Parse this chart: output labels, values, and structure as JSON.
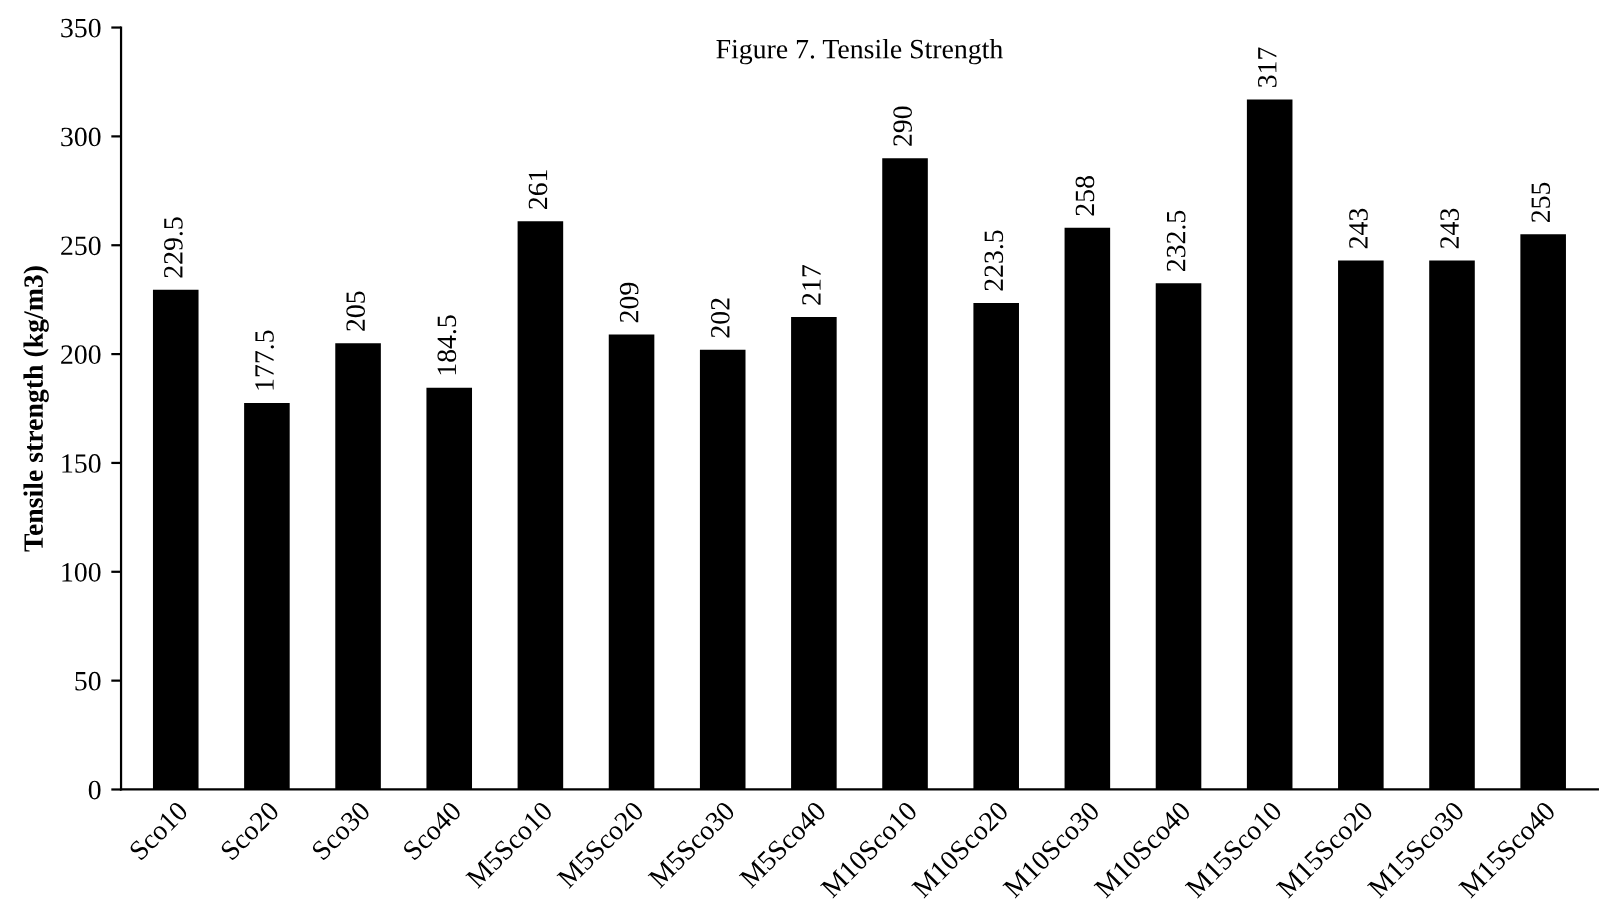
{
  "chart_data": {
    "type": "bar",
    "title": "Figure 7. Tensile Strength",
    "ylabel": "Tensile strength (kg/m3)",
    "categories": [
      "Sco10",
      "Sco20",
      "Sco30",
      "Sco40",
      "M5Sco10",
      "M5Sco20",
      "M5Sco30",
      "M5Sco40",
      "M10Sco10",
      "M10Sco20",
      "M10Sco30",
      "M10Sco40",
      "M15Sco10",
      "M15Sco20",
      "M15Sco30",
      "M15Sco40"
    ],
    "values": [
      229.5,
      177.5,
      205,
      184.5,
      261,
      209,
      202,
      217,
      290,
      223.5,
      258,
      232.5,
      317,
      243,
      243,
      255
    ],
    "color": "#000000",
    "ylim": [
      0,
      350
    ],
    "yticks": [
      0,
      50,
      100,
      150,
      200,
      250,
      300,
      350
    ],
    "grid": false,
    "data_labels": true
  }
}
